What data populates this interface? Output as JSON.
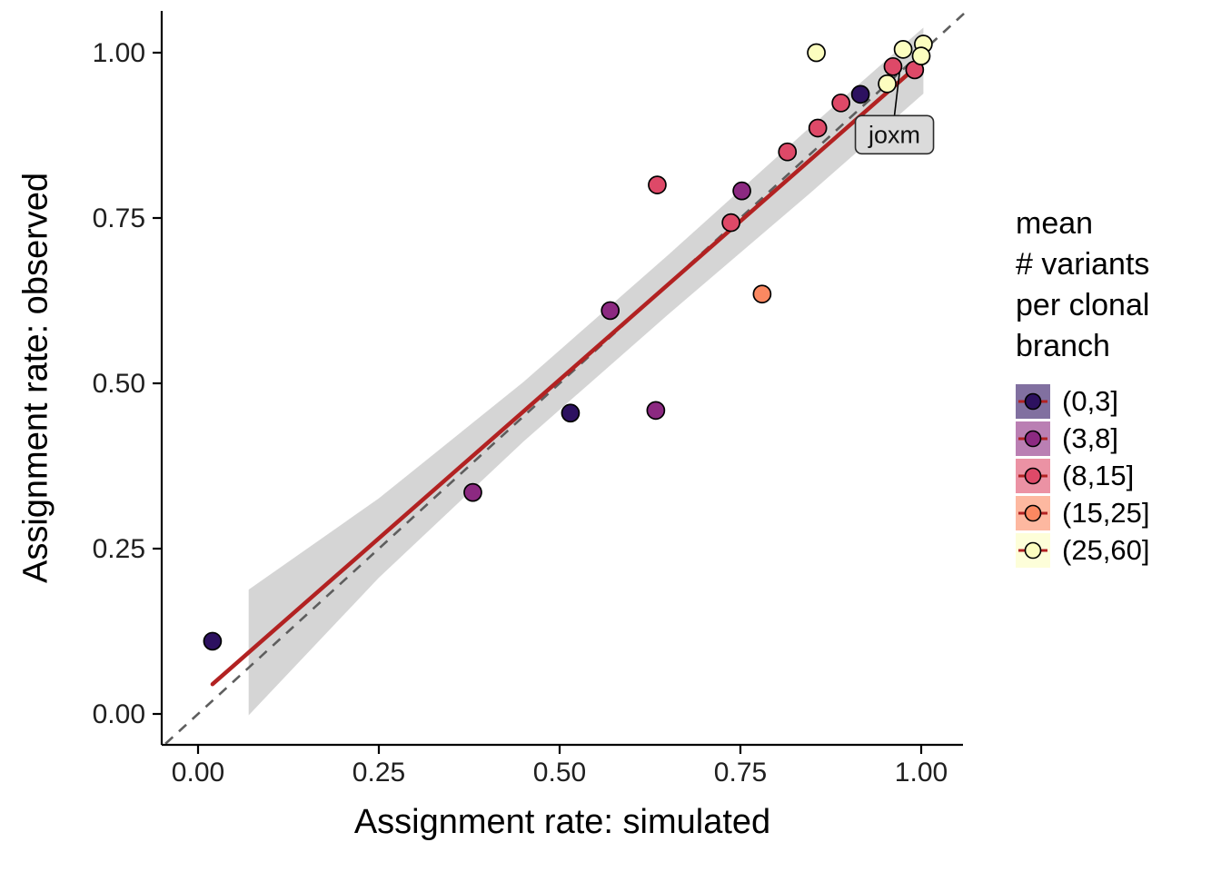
{
  "chart_data": {
    "type": "scatter",
    "title": "",
    "xlabel": "Assignment rate: simulated",
    "ylabel": "Assignment rate: observed",
    "xlim": [
      -0.05,
      1.06
    ],
    "ylim": [
      -0.05,
      1.06
    ],
    "grid": false,
    "x_ticks": [
      0,
      0.25,
      0.5,
      0.75,
      1
    ],
    "x_tick_labels": [
      "0.00",
      "0.25",
      "0.50",
      "0.75",
      "1.00"
    ],
    "y_ticks": [
      0,
      0.25,
      0.5,
      0.75,
      1
    ],
    "y_tick_labels": [
      "0.00",
      "0.25",
      "0.50",
      "0.75",
      "1.00"
    ],
    "legend": {
      "position": "right",
      "title": "mean\n# variants\nper clonal\nbranch"
    },
    "groups": [
      {
        "label": "(0,3]",
        "color": "#2D1160"
      },
      {
        "label": "(3,8]",
        "color": "#8C2981"
      },
      {
        "label": "(8,15]",
        "color": "#DE4968"
      },
      {
        "label": "(15,25]",
        "color": "#FB8861"
      },
      {
        "label": "(25,60]",
        "color": "#FCFDBF"
      }
    ],
    "points": [
      {
        "x": 0.02,
        "y": 0.11,
        "g": 0
      },
      {
        "x": 0.38,
        "y": 0.335,
        "g": 1
      },
      {
        "x": 0.515,
        "y": 0.455,
        "g": 0
      },
      {
        "x": 0.57,
        "y": 0.61,
        "g": 1
      },
      {
        "x": 0.633,
        "y": 0.459,
        "g": 1
      },
      {
        "x": 0.635,
        "y": 0.8,
        "g": 2
      },
      {
        "x": 0.737,
        "y": 0.743,
        "g": 2
      },
      {
        "x": 0.752,
        "y": 0.791,
        "g": 1
      },
      {
        "x": 0.78,
        "y": 0.635,
        "g": 3
      },
      {
        "x": 0.815,
        "y": 0.85,
        "g": 2
      },
      {
        "x": 0.855,
        "y": 1.0,
        "g": 4
      },
      {
        "x": 0.857,
        "y": 0.886,
        "g": 2
      },
      {
        "x": 0.889,
        "y": 0.924,
        "g": 2
      },
      {
        "x": 0.916,
        "y": 0.937,
        "g": 0
      },
      {
        "x": 0.953,
        "y": 0.953,
        "g": 4
      },
      {
        "x": 0.961,
        "y": 0.979,
        "g": 2
      },
      {
        "x": 0.991,
        "y": 0.974,
        "g": 2
      },
      {
        "x": 0.975,
        "y": 1.005,
        "g": 4
      },
      {
        "x": 1.003,
        "y": 1.013,
        "g": 4
      },
      {
        "x": 1.0,
        "y": 0.995,
        "g": 4
      }
    ],
    "identity_line": {
      "style": "dashed",
      "color": "#5E5E5E",
      "x1": -0.045,
      "y1": -0.045,
      "x2": 1.06,
      "y2": 1.06
    },
    "regression_line": {
      "color": "#B22222",
      "x1": 0.02,
      "y1": 0.045,
      "x2": 1.003,
      "y2": 0.988
    },
    "confidence_band": {
      "color": "#9B9B9B",
      "opacity": 0.42,
      "upper": [
        [
          0.07,
          0.188
        ],
        [
          0.25,
          0.326
        ],
        [
          0.45,
          0.502
        ],
        [
          0.65,
          0.694
        ],
        [
          0.85,
          0.891
        ],
        [
          1.003,
          1.038
        ]
      ],
      "lower": [
        [
          0.07,
          -0.002
        ],
        [
          0.25,
          0.206
        ],
        [
          0.45,
          0.412
        ],
        [
          0.65,
          0.604
        ],
        [
          0.85,
          0.791
        ],
        [
          1.003,
          0.938
        ]
      ]
    },
    "annotation": {
      "label": "joxm",
      "box_x": 0.963,
      "box_y": 0.876,
      "point_x": 0.97,
      "point_y": 0.97
    }
  }
}
